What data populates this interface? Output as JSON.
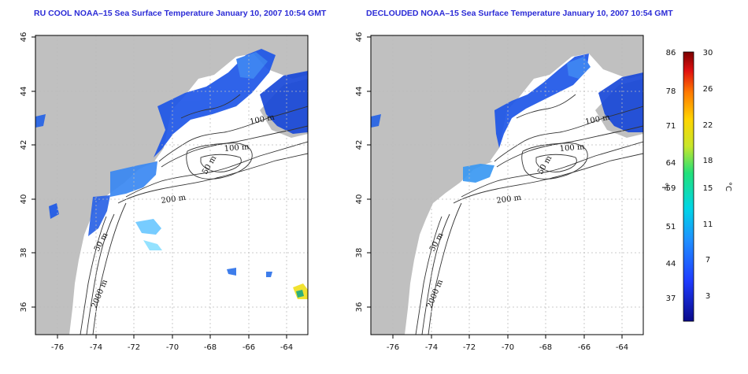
{
  "panels": [
    {
      "title": "RU COOL NOAA–15 Sea Surface Temperature January 10, 2007 10:54 GMT",
      "contour_labels": [
        "100 m",
        "100 m",
        "50 m",
        "200 m",
        "50 m",
        "2000 m"
      ]
    },
    {
      "title": "DECLOUDED NOAA–15 Sea Surface Temperature January 10, 2007 10:54 GMT",
      "contour_labels": [
        "100 m",
        "100 m",
        "50 m",
        "200 m",
        "50 m",
        "2000 m"
      ]
    }
  ],
  "axes": {
    "lat_ticks": [
      "46",
      "44",
      "42",
      "40",
      "38",
      "36"
    ],
    "lon_ticks": [
      "-76",
      "-74",
      "-72",
      "-70",
      "-68",
      "-66",
      "-64"
    ]
  },
  "colorbar": {
    "unit_f": "°F",
    "unit_c": "°C",
    "f_ticks": [
      "86",
      "78",
      "71",
      "64",
      "59",
      "51",
      "44",
      "37"
    ],
    "c_ticks": [
      "30",
      "26",
      "22",
      "18",
      "15",
      "11",
      "7",
      "3"
    ]
  },
  "colors": {
    "land": "#c0c0c0",
    "title": "#2b2bd6",
    "cold_sst": "#2a5fe0"
  }
}
